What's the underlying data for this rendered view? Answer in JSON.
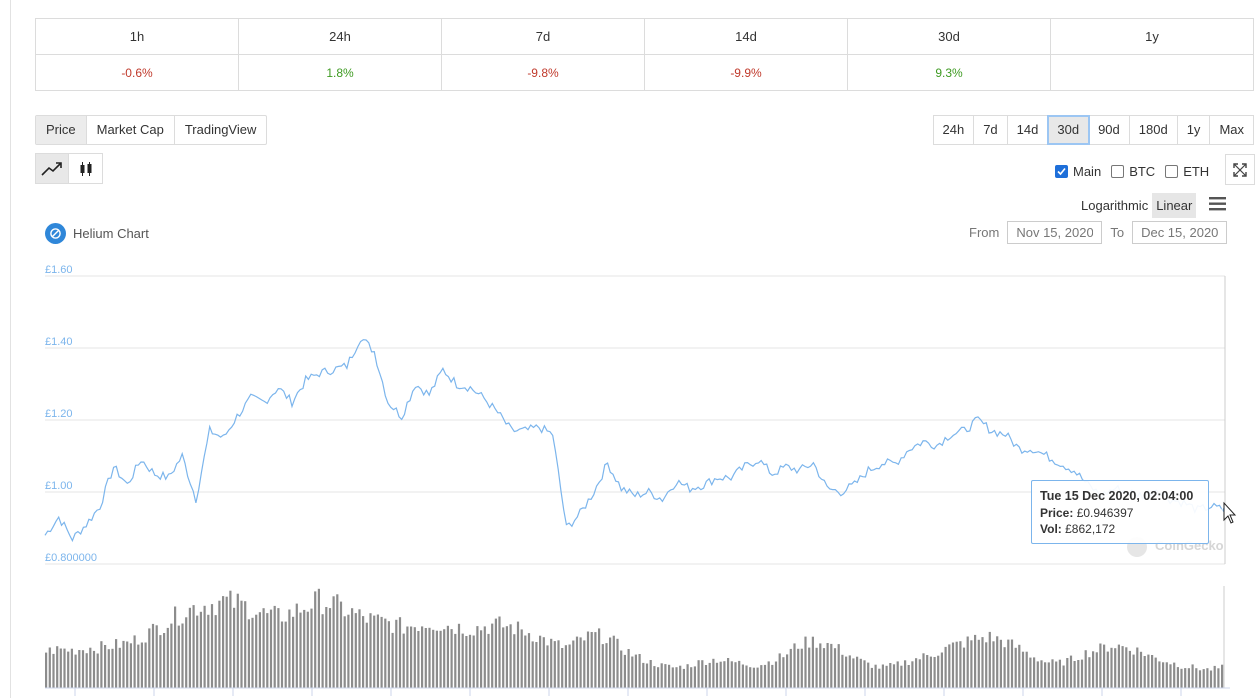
{
  "changes": {
    "headers": [
      "1h",
      "24h",
      "7d",
      "14d",
      "30d",
      "1y"
    ],
    "values": [
      "-0.6%",
      "1.8%",
      "-9.8%",
      "-9.9%",
      "9.3%",
      ""
    ]
  },
  "type_tabs": [
    "Price",
    "Market Cap",
    "TradingView"
  ],
  "ranges": [
    "24h",
    "7d",
    "14d",
    "30d",
    "90d",
    "180d",
    "1y",
    "Max"
  ],
  "active_range": "30d",
  "checks": [
    {
      "label": "Main",
      "checked": true
    },
    {
      "label": "BTC",
      "checked": false
    },
    {
      "label": "ETH",
      "checked": false
    }
  ],
  "scale": {
    "log": "Logarithmic",
    "linear": "Linear",
    "active": "Linear"
  },
  "chart_title": "Helium Chart",
  "dates": {
    "from_label": "From",
    "from": "Nov 15, 2020",
    "to_label": "To",
    "to": "Dec 15, 2020"
  },
  "watermark": "CoinGecko",
  "tooltip": {
    "time": "Tue 15 Dec 2020, 02:04:00",
    "price_label": "Price:",
    "price": "£0.946397",
    "vol_label": "Vol:",
    "vol": "£862,172"
  },
  "colors": {
    "line": "#7cb5ec",
    "volume": "#8c8c8c",
    "neg": "#c0392b",
    "pos": "#3d9a21"
  },
  "chart_data": {
    "type": "line",
    "ylabels": [
      "£1.60",
      "£1.40",
      "£1.20",
      "£1.00",
      "£0.800000"
    ],
    "yticks": [
      1.6,
      1.4,
      1.2,
      1.0,
      0.8
    ],
    "ylim": [
      0.8,
      1.6
    ],
    "xlim": [
      "Nov 15, 2020",
      "Dec 15, 2020"
    ],
    "series": [
      {
        "values": [
          0.88,
          0.93,
          0.87,
          0.91,
          0.96,
          1.07,
          1.02,
          1.09,
          1.05,
          1.04,
          1.1,
          0.98,
          1.17,
          1.15,
          1.21,
          1.26,
          1.25,
          1.29,
          1.25,
          1.31,
          1.33,
          1.34,
          1.35,
          1.43,
          1.39,
          1.25,
          1.21,
          1.3,
          1.27,
          1.34,
          1.3,
          1.29,
          1.26,
          1.22,
          1.17,
          1.17,
          1.18,
          1.16,
          0.9,
          0.94,
          1.0,
          1.08,
          1.01,
          0.99,
          1.0,
          0.98,
          1.03,
          1.01,
          1.02,
          1.04,
          1.04,
          1.07,
          1.09,
          1.05,
          1.07,
          1.06,
          1.08,
          1.01,
          1.0,
          1.02,
          1.06,
          1.08,
          1.08,
          1.12,
          1.14,
          1.13,
          1.16,
          1.17,
          1.2,
          1.17,
          1.16,
          1.12,
          1.12,
          1.1,
          1.08,
          1.06,
          1.02,
          0.99,
          1.01,
          1.0,
          0.99,
          1.01,
          0.98,
          0.97,
          0.95,
          0.96,
          0.95
        ]
      }
    ],
    "volume": [
      0.36,
      0.38,
      0.37,
      0.39,
      0.4,
      0.42,
      0.44,
      0.5,
      0.58,
      0.66,
      0.74,
      0.8,
      0.82,
      0.85,
      0.83,
      0.78,
      0.72,
      0.7,
      0.74,
      0.8,
      0.86,
      0.82,
      0.76,
      0.7,
      0.66,
      0.64,
      0.6,
      0.62,
      0.64,
      0.62,
      0.6,
      0.58,
      0.6,
      0.62,
      0.6,
      0.56,
      0.5,
      0.44,
      0.4,
      0.46,
      0.52,
      0.5,
      0.4,
      0.32,
      0.26,
      0.22,
      0.2,
      0.22,
      0.26,
      0.28,
      0.26,
      0.24,
      0.22,
      0.26,
      0.32,
      0.42,
      0.46,
      0.44,
      0.38,
      0.3,
      0.24,
      0.2,
      0.22,
      0.26,
      0.3,
      0.34,
      0.4,
      0.44,
      0.48,
      0.5,
      0.46,
      0.4,
      0.32,
      0.26,
      0.24,
      0.28,
      0.34,
      0.38,
      0.42,
      0.4,
      0.36,
      0.3,
      0.26,
      0.22,
      0.2,
      0.18,
      0.2
    ]
  }
}
